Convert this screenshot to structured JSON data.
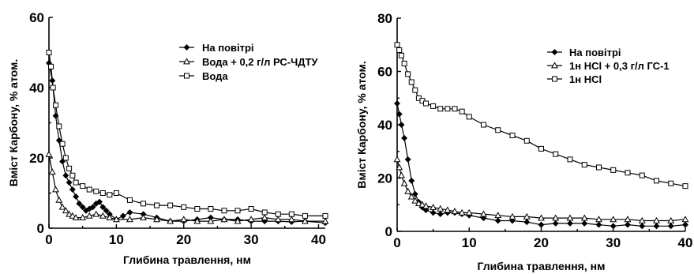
{
  "chart_data": [
    {
      "type": "line",
      "xlabel": "Глибина травлення, нм",
      "ylabel": "Вміст Карбону, % атом.",
      "xlim": [
        0,
        41
      ],
      "ylim": [
        0,
        60
      ],
      "xticks": [
        0,
        10,
        20,
        30,
        40
      ],
      "yticks": [
        0,
        20,
        40,
        60
      ],
      "legend_position": "top-right",
      "series": [
        {
          "name": "На повітрі",
          "marker": "diamond",
          "x": [
            0,
            0.5,
            1,
            1.5,
            2,
            2.5,
            3,
            3.5,
            4,
            4.5,
            5,
            5.5,
            6,
            6.5,
            7,
            7.5,
            8,
            8.5,
            9,
            10,
            11,
            12,
            14,
            16,
            18,
            20,
            22,
            24,
            26,
            28,
            30,
            32,
            34,
            36,
            38,
            41
          ],
          "y": [
            47,
            42,
            32,
            25,
            19,
            15,
            13,
            11,
            9,
            7,
            6,
            5,
            5.5,
            6,
            7,
            7.5,
            6,
            5,
            4,
            2.5,
            3.5,
            4.5,
            4,
            3,
            2,
            2,
            2.5,
            3,
            2.5,
            2.5,
            2,
            2,
            2,
            1.8,
            2,
            1.5
          ]
        },
        {
          "name": "Вода + 0,2 г/л РС-ЧДТУ",
          "marker": "triangle",
          "x": [
            0,
            0.5,
            1,
            1.5,
            2,
            2.5,
            3,
            3.5,
            4,
            5,
            6,
            7,
            8,
            9,
            10,
            12,
            14,
            16,
            18,
            20,
            22,
            24,
            26,
            28,
            30,
            32,
            34,
            36,
            38,
            41
          ],
          "y": [
            21,
            16,
            11,
            8,
            6,
            5,
            4,
            3.5,
            3,
            3,
            3.5,
            4,
            3.5,
            3,
            2.5,
            2.5,
            3,
            2.5,
            2,
            2.5,
            2,
            2,
            2.5,
            2,
            2.5,
            3,
            2.5,
            2.5,
            2,
            2
          ]
        },
        {
          "name": "Вода",
          "marker": "square",
          "x": [
            0,
            0.3,
            0.6,
            1,
            1.5,
            2,
            2.5,
            3,
            3.5,
            4,
            5,
            6,
            7,
            8,
            9,
            10,
            12,
            14,
            16,
            18,
            20,
            22,
            24,
            26,
            28,
            30,
            32,
            34,
            36,
            38,
            41
          ],
          "y": [
            50,
            46,
            40,
            35,
            29,
            24,
            20,
            17,
            15,
            13,
            12,
            11,
            10.5,
            10,
            9.5,
            10,
            8,
            7,
            6.5,
            6.5,
            6,
            5.5,
            5.5,
            5,
            5,
            5.5,
            4.5,
            4,
            4,
            3.5,
            3.5
          ]
        }
      ]
    },
    {
      "type": "line",
      "xlabel": "Глибина травлення, нм",
      "ylabel": "Вміст Карбону, % атом.",
      "xlim": [
        0,
        40
      ],
      "ylim": [
        0,
        80
      ],
      "xticks": [
        0,
        10,
        20,
        30,
        40
      ],
      "yticks": [
        0,
        20,
        40,
        60,
        80
      ],
      "legend_position": "top-right",
      "series": [
        {
          "name": "На повітрі",
          "marker": "diamond",
          "x": [
            0,
            0.3,
            0.6,
            1,
            1.5,
            2,
            2.5,
            3,
            3.5,
            4,
            5,
            6,
            7,
            8,
            9,
            10,
            12,
            14,
            16,
            18,
            20,
            22,
            24,
            26,
            28,
            30,
            32,
            34,
            36,
            38,
            40
          ],
          "y": [
            48,
            44,
            40,
            35,
            27,
            19,
            14,
            11,
            9,
            8,
            7,
            6.5,
            7,
            7,
            6.5,
            6,
            5,
            4,
            4,
            3.5,
            2.5,
            3,
            3,
            3,
            2.5,
            2,
            2.5,
            2,
            2,
            2,
            2.5
          ]
        },
        {
          "name": "1н HCl + 0,3 г/л ГС-1",
          "marker": "triangle",
          "x": [
            0,
            0.3,
            0.6,
            1,
            1.5,
            2,
            2.5,
            3,
            3.5,
            4,
            5,
            6,
            7,
            8,
            9,
            10,
            12,
            14,
            16,
            18,
            20,
            22,
            24,
            26,
            28,
            30,
            32,
            34,
            36,
            38,
            40
          ],
          "y": [
            27,
            24,
            21,
            18,
            15,
            13,
            11.5,
            10.5,
            10,
            9.5,
            9,
            8.5,
            8,
            7.5,
            7,
            7,
            6.5,
            6,
            5.5,
            5.5,
            5,
            5,
            5,
            5,
            4.5,
            4.5,
            4.5,
            4,
            4,
            4,
            4.5
          ]
        },
        {
          "name": "1н HCl",
          "marker": "square",
          "x": [
            0,
            0.3,
            0.6,
            1,
            1.5,
            2,
            2.5,
            3,
            3.5,
            4,
            5,
            6,
            7,
            8,
            9,
            10,
            12,
            14,
            16,
            18,
            20,
            22,
            24,
            26,
            28,
            30,
            32,
            34,
            36,
            38,
            40
          ],
          "y": [
            70,
            68,
            66,
            63,
            59,
            56,
            53,
            50,
            49,
            48,
            47,
            46,
            46,
            46,
            45,
            43,
            40,
            38,
            36,
            34,
            31,
            29,
            27,
            25,
            24,
            23,
            22,
            21,
            19,
            18,
            17
          ]
        }
      ]
    }
  ]
}
